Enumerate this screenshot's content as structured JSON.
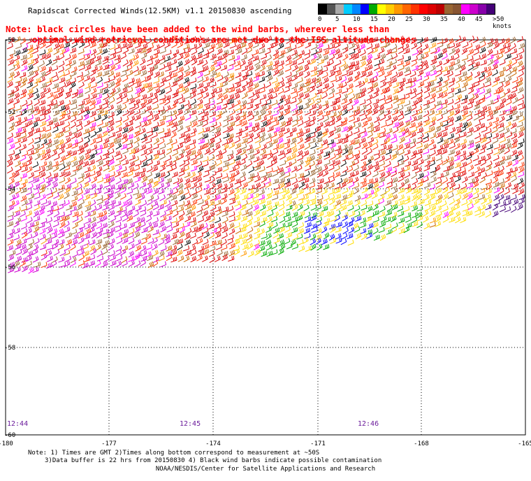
{
  "title": "Rapidscat Corrected Winds(12.5KM) v1.1 20150830 ascending",
  "note": {
    "line1": "Note: black circles have been added to the wind barbs, wherever less than",
    "line2": "optimal wind retrieval conditions are met due to the ISS altitude changes"
  },
  "legend": {
    "labels": [
      "0",
      "5",
      "10",
      "15",
      "20",
      "25",
      "30",
      "35",
      "40",
      "45",
      ">50 knots"
    ],
    "colors": [
      "#000000",
      "#555555",
      "#aaaaaa",
      "#00ccff",
      "#0088ff",
      "#0000ff",
      "#00aa00",
      "#ffff00",
      "#ffcc00",
      "#ff9900",
      "#ff6600",
      "#ff3300",
      "#ff0000",
      "#dd0000",
      "#bb0000",
      "#996633",
      "#885533",
      "#ff00ff",
      "#cc00cc",
      "#8800aa",
      "#440077"
    ]
  },
  "axes": {
    "x_ticks": [
      "-180",
      "-177",
      "-174",
      "-171",
      "-168",
      "-165"
    ],
    "y_ticks": [
      "-50",
      "-52",
      "-54",
      "-56",
      "-58",
      "-60"
    ]
  },
  "time_labels": [
    "12:44",
    "12:45",
    "12:46"
  ],
  "footer": {
    "line1": "Note: 1) Times are GMT 2)Times along bottom correspond to measurement at ~50S",
    "line2": "3)Data buffer is 22 hrs from 20150830 4) Black wind barbs indicate possible contamination",
    "credit": "NOAA/NESDIS/Center for Satellite Applications and Research"
  }
}
